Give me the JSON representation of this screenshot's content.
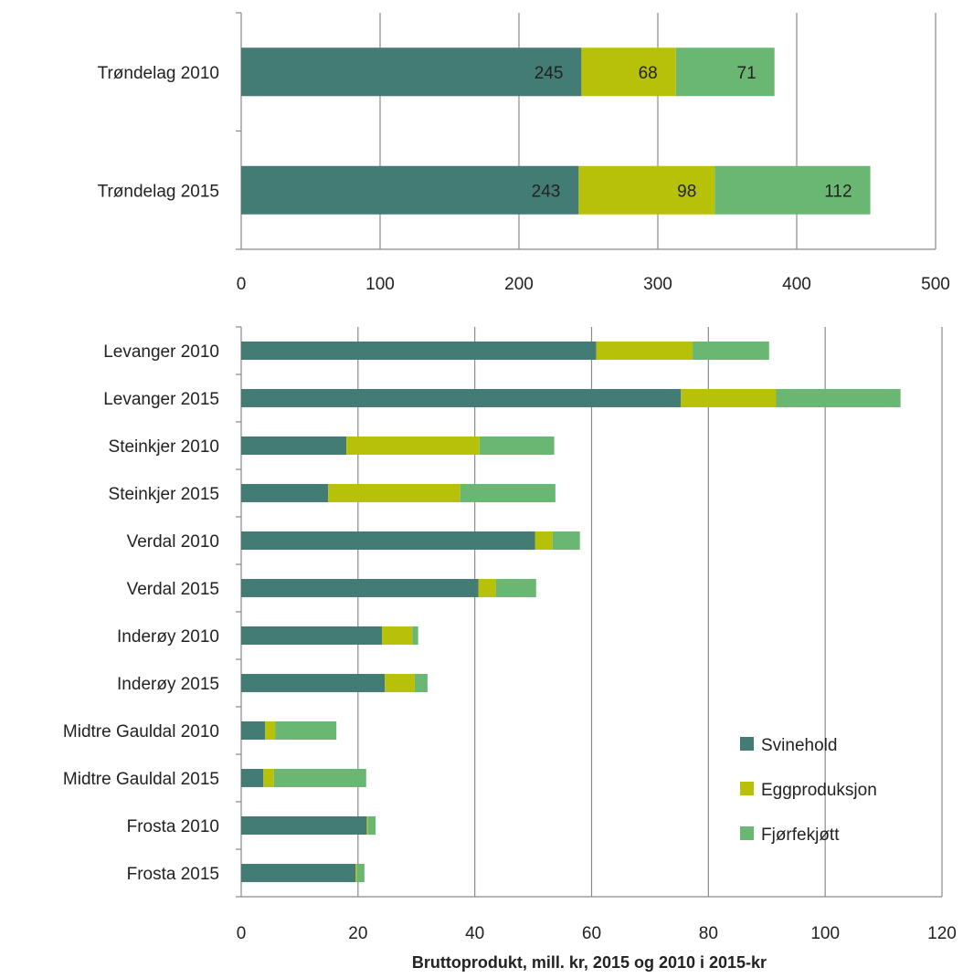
{
  "colors": {
    "svinehold": "#437c74",
    "eggproduksjon": "#b8c10a",
    "fjorfekjott": "#6ab773"
  },
  "chart_data": [
    {
      "type": "bar",
      "orientation": "horizontal",
      "stacked": true,
      "categories": [
        "Trøndelag 2010",
        "Trøndelag 2015"
      ],
      "series": [
        {
          "name": "Svinehold",
          "values": [
            245,
            243
          ]
        },
        {
          "name": "Eggproduksjon",
          "values": [
            68,
            98
          ]
        },
        {
          "name": "Fjørfekjøtt",
          "values": [
            71,
            112
          ]
        }
      ],
      "xlim": [
        0,
        500
      ],
      "xticks": [
        "0",
        "100",
        "200",
        "300",
        "400",
        "500"
      ],
      "data_labels": true,
      "grid": "vertical"
    },
    {
      "type": "bar",
      "orientation": "horizontal",
      "stacked": true,
      "categories": [
        "Levanger 2010",
        "Levanger 2015",
        "Steinkjer 2010",
        "Steinkjer 2015",
        "Verdal 2010",
        "Verdal 2015",
        "Inderøy 2010",
        "Inderøy 2015",
        "Midtre Gauldal 2010",
        "Midtre Gauldal 2015",
        "Frosta 2010",
        "Frosta 2015"
      ],
      "series": [
        {
          "name": "Svinehold",
          "values": [
            60.8,
            75.3,
            18.0,
            14.9,
            50.3,
            40.6,
            24.1,
            24.6,
            4.1,
            3.8,
            21.5,
            19.6
          ]
        },
        {
          "name": "Eggproduksjon",
          "values": [
            16.5,
            16.3,
            22.8,
            22.6,
            3.0,
            3.0,
            5.2,
            5.1,
            1.7,
            1.8,
            0.2,
            0.2
          ]
        },
        {
          "name": "Fjørfekjøtt",
          "values": [
            13.1,
            21.3,
            12.8,
            16.3,
            4.7,
            6.9,
            1.0,
            2.2,
            10.5,
            15.8,
            1.3,
            1.3
          ]
        }
      ],
      "xlim": [
        0,
        120
      ],
      "xticks": [
        "0",
        "20",
        "40",
        "60",
        "80",
        "100",
        "120"
      ],
      "xlabel": "Bruttoprodukt, mill. kr, 2015 og 2010 i 2015-kr",
      "legend": {
        "position": "bottom-right",
        "entries": [
          "Svinehold",
          "Eggproduksjon",
          "Fjørfekjøtt"
        ]
      },
      "grid": "vertical"
    }
  ]
}
